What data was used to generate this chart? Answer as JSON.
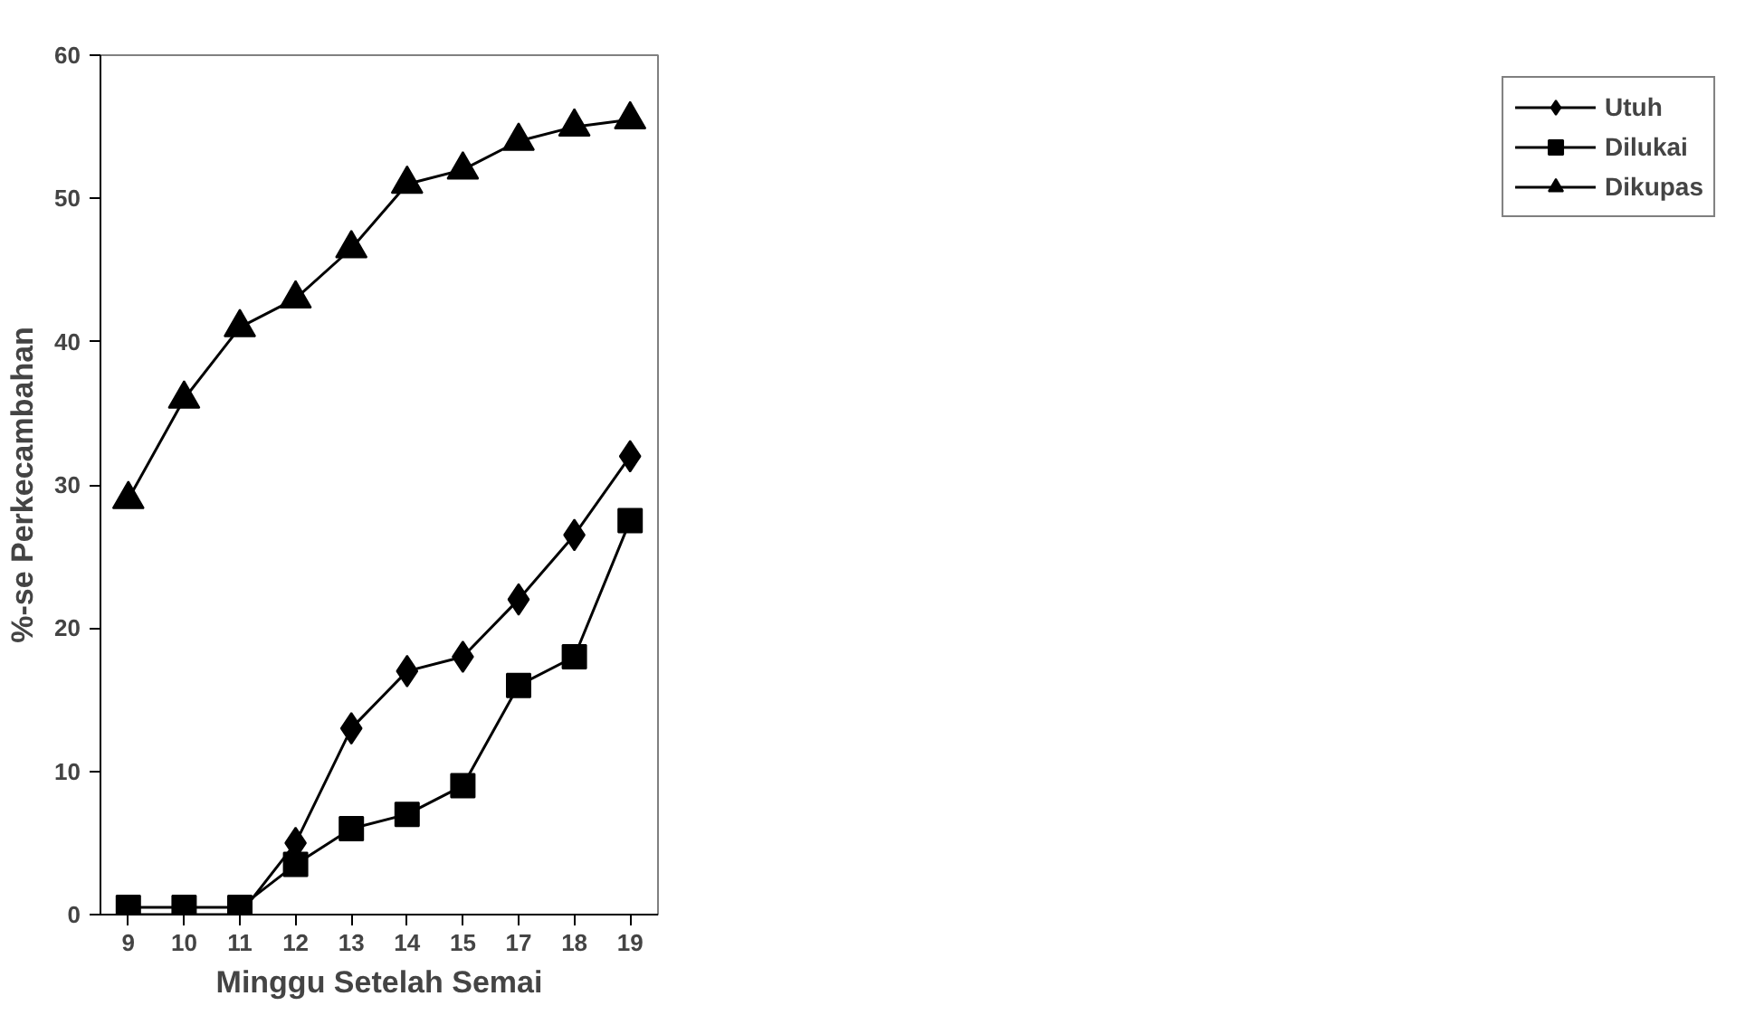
{
  "chart_data": {
    "type": "line",
    "xlabel": "Minggu Setelah Semai",
    "ylabel": "%-se Perkecambahan",
    "categories": [
      "9",
      "10",
      "11",
      "12",
      "13",
      "14",
      "15",
      "17",
      "18",
      "19"
    ],
    "ylim": [
      0,
      60
    ],
    "yticks": [
      0,
      10,
      20,
      30,
      40,
      50,
      60
    ],
    "grid": false,
    "legend": "right",
    "line_style": "solid",
    "series": [
      {
        "name": "Utuh",
        "color": "#000000",
        "marker": "diamond",
        "values": [
          0,
          0,
          0,
          5,
          13,
          17,
          18,
          22,
          26.5,
          32
        ]
      },
      {
        "name": "Dilukai",
        "color": "#000000",
        "marker": "square",
        "values": [
          0.5,
          0.5,
          0.5,
          3.5,
          6,
          7,
          9,
          16,
          18,
          27.5
        ]
      },
      {
        "name": "Dikupas",
        "color": "#000000",
        "marker": "triangle",
        "values": [
          29,
          36,
          41,
          43,
          46.5,
          51,
          52,
          54,
          55,
          55.5
        ]
      }
    ]
  }
}
